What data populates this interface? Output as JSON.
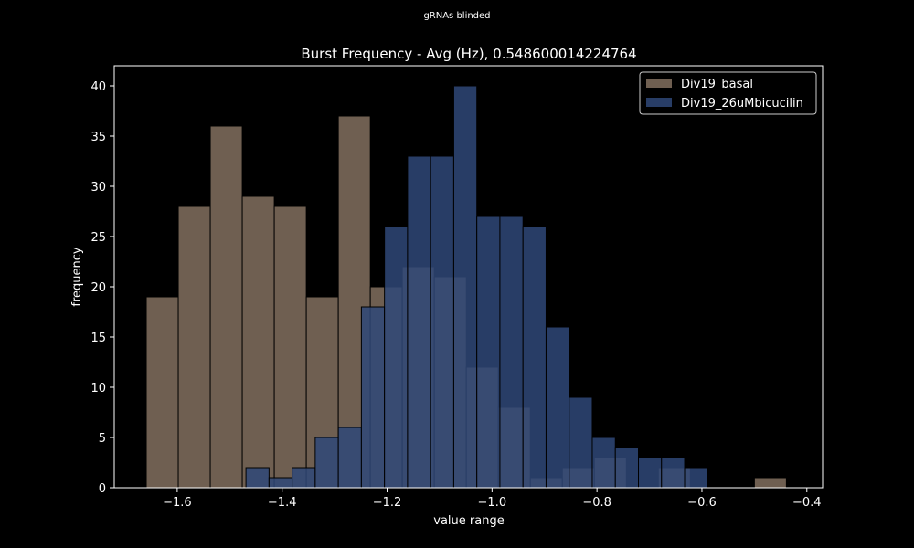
{
  "suptitle": "gRNAs blinded",
  "chart_data": {
    "type": "histogram",
    "title": "Burst Frequency - Avg (Hz), 0.548600014224764",
    "xlabel": "value range",
    "ylabel": "frequency",
    "xlim": [
      -1.72,
      -0.37
    ],
    "ylim": [
      0,
      42
    ],
    "xticks": [
      -1.6,
      -1.4,
      -1.2,
      -1.0,
      -0.8,
      -0.6,
      -0.4
    ],
    "xtick_labels": [
      "−1.6",
      "−1.4",
      "−1.2",
      "−1.0",
      "−0.8",
      "−0.6",
      "−0.4"
    ],
    "yticks": [
      0,
      5,
      10,
      15,
      20,
      25,
      30,
      35,
      40
    ],
    "ytick_labels": [
      "0",
      "5",
      "10",
      "15",
      "20",
      "25",
      "30",
      "35",
      "40"
    ],
    "grid": false,
    "legend_position": "top-right",
    "series": [
      {
        "name": "Div19_basal",
        "color": "#82705f",
        "bins": [
          {
            "x0": -1.659,
            "x1": -1.598,
            "value": 19
          },
          {
            "x0": -1.598,
            "x1": -1.537,
            "value": 28
          },
          {
            "x0": -1.537,
            "x1": -1.476,
            "value": 36
          },
          {
            "x0": -1.476,
            "x1": -1.415,
            "value": 29
          },
          {
            "x0": -1.415,
            "x1": -1.354,
            "value": 28
          },
          {
            "x0": -1.354,
            "x1": -1.293,
            "value": 19
          },
          {
            "x0": -1.293,
            "x1": -1.232,
            "value": 37
          },
          {
            "x0": -1.232,
            "x1": -1.171,
            "value": 20
          },
          {
            "x0": -1.171,
            "x1": -1.11,
            "value": 22
          },
          {
            "x0": -1.11,
            "x1": -1.049,
            "value": 21
          },
          {
            "x0": -1.049,
            "x1": -0.988,
            "value": 12
          },
          {
            "x0": -0.988,
            "x1": -0.927,
            "value": 8
          },
          {
            "x0": -0.927,
            "x1": -0.866,
            "value": 1
          },
          {
            "x0": -0.866,
            "x1": -0.805,
            "value": 2
          },
          {
            "x0": -0.805,
            "x1": -0.744,
            "value": 3
          },
          {
            "x0": -0.744,
            "x1": -0.683,
            "value": 0
          },
          {
            "x0": -0.683,
            "x1": -0.622,
            "value": 2
          },
          {
            "x0": -0.622,
            "x1": -0.561,
            "value": 0
          },
          {
            "x0": -0.561,
            "x1": -0.5,
            "value": 0
          },
          {
            "x0": -0.5,
            "x1": -0.439,
            "value": 1
          }
        ]
      },
      {
        "name": "Div19_26uMbicucilin",
        "color": "#2f4878",
        "bins": [
          {
            "x0": -1.469,
            "x1": -1.425,
            "value": 2
          },
          {
            "x0": -1.425,
            "x1": -1.381,
            "value": 1
          },
          {
            "x0": -1.381,
            "x1": -1.337,
            "value": 2
          },
          {
            "x0": -1.337,
            "x1": -1.293,
            "value": 5
          },
          {
            "x0": -1.293,
            "x1": -1.249,
            "value": 6
          },
          {
            "x0": -1.249,
            "x1": -1.205,
            "value": 18
          },
          {
            "x0": -1.205,
            "x1": -1.161,
            "value": 26
          },
          {
            "x0": -1.161,
            "x1": -1.117,
            "value": 33
          },
          {
            "x0": -1.117,
            "x1": -1.073,
            "value": 33
          },
          {
            "x0": -1.073,
            "x1": -1.029,
            "value": 40
          },
          {
            "x0": -1.029,
            "x1": -0.985,
            "value": 27
          },
          {
            "x0": -0.985,
            "x1": -0.941,
            "value": 27
          },
          {
            "x0": -0.941,
            "x1": -0.897,
            "value": 26
          },
          {
            "x0": -0.897,
            "x1": -0.853,
            "value": 16
          },
          {
            "x0": -0.853,
            "x1": -0.809,
            "value": 9
          },
          {
            "x0": -0.809,
            "x1": -0.765,
            "value": 5
          },
          {
            "x0": -0.765,
            "x1": -0.721,
            "value": 4
          },
          {
            "x0": -0.721,
            "x1": -0.677,
            "value": 3
          },
          {
            "x0": -0.677,
            "x1": -0.633,
            "value": 3
          },
          {
            "x0": -0.633,
            "x1": -0.589,
            "value": 2
          }
        ]
      }
    ]
  }
}
